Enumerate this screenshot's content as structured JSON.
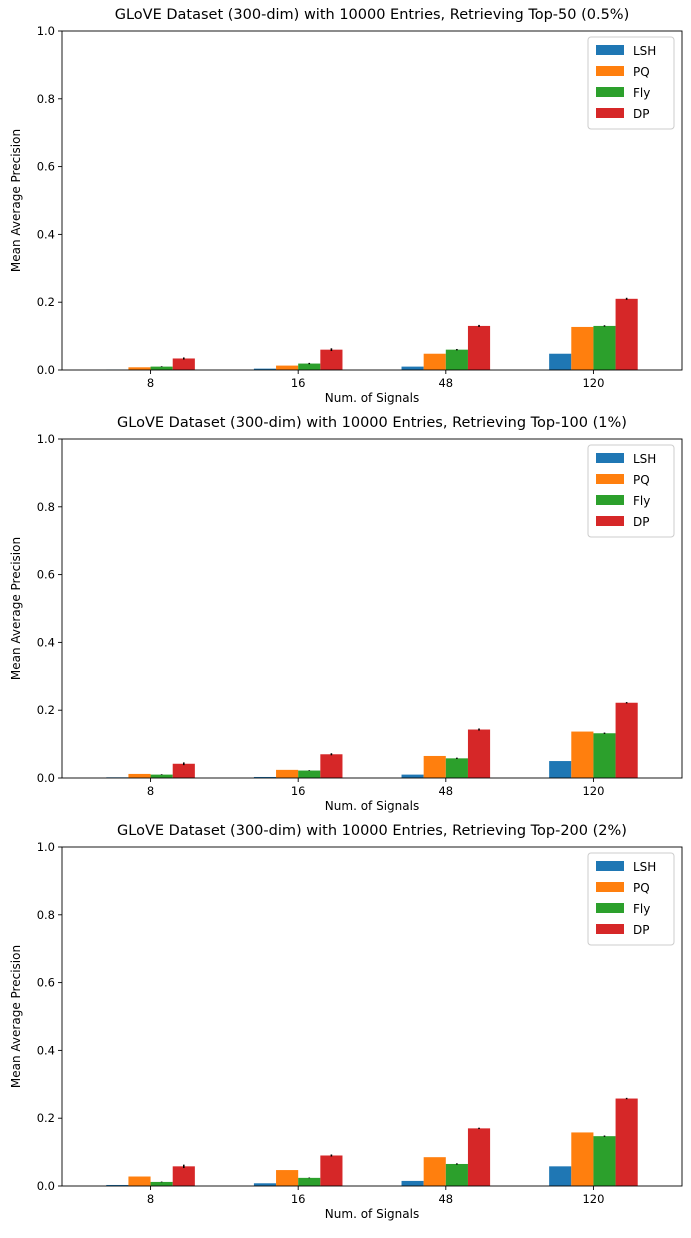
{
  "chart_data": [
    {
      "type": "bar",
      "title": "GLoVE Dataset (300-dim) with 10000 Entries, Retrieving Top-50 (0.5%)",
      "xlabel": "Num. of Signals",
      "ylabel": "Mean Average Precision",
      "ylim": [
        0,
        1.0
      ],
      "yticks": [
        "0.0",
        "0.2",
        "0.4",
        "0.6",
        "0.8",
        "1.0"
      ],
      "categories": [
        "8",
        "16",
        "48",
        "120"
      ],
      "legend_position": "top-right",
      "series": [
        {
          "name": "LSH",
          "color": "#1f77b4",
          "values": [
            0.001,
            0.004,
            0.01,
            0.048
          ],
          "errors": [
            0,
            0,
            0,
            0
          ]
        },
        {
          "name": "PQ",
          "color": "#ff7f0e",
          "values": [
            0.008,
            0.013,
            0.048,
            0.127
          ],
          "errors": [
            0,
            0,
            0,
            0
          ]
        },
        {
          "name": "Fly",
          "color": "#2ca02c",
          "values": [
            0.01,
            0.019,
            0.06,
            0.13
          ],
          "errors": [
            0.001,
            0.002,
            0.002,
            0.002
          ]
        },
        {
          "name": "DP",
          "color": "#d62728",
          "values": [
            0.034,
            0.06,
            0.13,
            0.21
          ],
          "errors": [
            0.003,
            0.004,
            0.003,
            0.003
          ]
        }
      ]
    },
    {
      "type": "bar",
      "title": "GLoVE Dataset (300-dim) with 10000 Entries, Retrieving Top-100 (1%)",
      "xlabel": "Num. of Signals",
      "ylabel": "Mean Average Precision",
      "ylim": [
        0,
        1.0
      ],
      "yticks": [
        "0.0",
        "0.2",
        "0.4",
        "0.6",
        "0.8",
        "1.0"
      ],
      "categories": [
        "8",
        "16",
        "48",
        "120"
      ],
      "legend_position": "top-right",
      "series": [
        {
          "name": "LSH",
          "color": "#1f77b4",
          "values": [
            0.002,
            0.003,
            0.01,
            0.05
          ],
          "errors": [
            0,
            0,
            0,
            0
          ]
        },
        {
          "name": "PQ",
          "color": "#ff7f0e",
          "values": [
            0.012,
            0.024,
            0.065,
            0.137
          ],
          "errors": [
            0,
            0,
            0,
            0
          ]
        },
        {
          "name": "Fly",
          "color": "#2ca02c",
          "values": [
            0.01,
            0.022,
            0.058,
            0.132
          ],
          "errors": [
            0.001,
            0.001,
            0.002,
            0.002
          ]
        },
        {
          "name": "DP",
          "color": "#d62728",
          "values": [
            0.042,
            0.07,
            0.143,
            0.222
          ],
          "errors": [
            0.004,
            0.003,
            0.003,
            0.002
          ]
        }
      ]
    },
    {
      "type": "bar",
      "title": "GLoVE Dataset (300-dim) with 10000 Entries, Retrieving Top-200 (2%)",
      "xlabel": "Num. of Signals",
      "ylabel": "Mean Average Precision",
      "ylim": [
        0,
        1.0
      ],
      "yticks": [
        "0.0",
        "0.2",
        "0.4",
        "0.6",
        "0.8",
        "1.0"
      ],
      "categories": [
        "8",
        "16",
        "48",
        "120"
      ],
      "legend_position": "top-right",
      "series": [
        {
          "name": "LSH",
          "color": "#1f77b4",
          "values": [
            0.003,
            0.008,
            0.015,
            0.058
          ],
          "errors": [
            0,
            0,
            0,
            0
          ]
        },
        {
          "name": "PQ",
          "color": "#ff7f0e",
          "values": [
            0.028,
            0.047,
            0.085,
            0.158
          ],
          "errors": [
            0,
            0,
            0,
            0
          ]
        },
        {
          "name": "Fly",
          "color": "#2ca02c",
          "values": [
            0.012,
            0.024,
            0.065,
            0.147
          ],
          "errors": [
            0.001,
            0.001,
            0.002,
            0.002
          ]
        },
        {
          "name": "DP",
          "color": "#d62728",
          "values": [
            0.058,
            0.09,
            0.17,
            0.258
          ],
          "errors": [
            0.005,
            0.003,
            0.002,
            0.002
          ]
        }
      ]
    }
  ]
}
